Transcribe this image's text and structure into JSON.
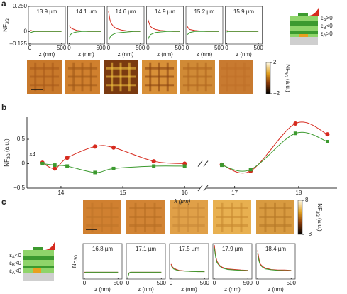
{
  "chart_data": [
    {
      "type": "small-multiples",
      "label": "a",
      "ylabel": {
        "text": "NF",
        "sub": "3Ω"
      },
      "ylim": [
        -0.125,
        0.25
      ],
      "yticks": [
        {
          "value": 0.25,
          "label": "0.250"
        },
        0,
        {
          "value": -0.125,
          "label": "–0.125"
        }
      ],
      "xlabel": "z (nm)",
      "xlim": [
        0,
        560
      ],
      "xticks": [
        0,
        500
      ],
      "x": [
        0,
        20,
        40,
        80,
        120,
        200,
        300,
        400,
        500
      ],
      "plots": [
        {
          "title": "13.9 µm",
          "series": [
            {
              "color": "#d62a1e",
              "values": [
                0.01,
                0.01,
                0.005,
                0,
                0,
                0,
                0,
                0,
                0
              ]
            },
            {
              "color": "#3c9a2f",
              "values": [
                -0.01,
                -0.01,
                -0.005,
                0,
                0,
                0,
                0,
                0,
                0
              ]
            }
          ]
        },
        {
          "title": "14.1 µm",
          "series": [
            {
              "color": "#d62a1e",
              "values": [
                0.06,
                0.04,
                0.03,
                0.02,
                0.01,
                0.005,
                0,
                0,
                0
              ]
            },
            {
              "color": "#3c9a2f",
              "values": [
                -0.05,
                -0.03,
                -0.02,
                -0.01,
                -0.005,
                0,
                0,
                0,
                0
              ]
            }
          ]
        },
        {
          "title": "14.6 µm",
          "series": [
            {
              "color": "#d62a1e",
              "values": [
                0.2,
                0.12,
                0.08,
                0.05,
                0.03,
                0.015,
                0.005,
                0,
                0
              ]
            },
            {
              "color": "#3c9a2f",
              "values": [
                -0.09,
                -0.06,
                -0.04,
                -0.025,
                -0.015,
                -0.01,
                -0.005,
                0,
                0
              ]
            }
          ]
        },
        {
          "title": "14.9 µm",
          "series": [
            {
              "color": "#d62a1e",
              "values": [
                0.12,
                0.08,
                0.05,
                0.03,
                0.02,
                0.01,
                0.005,
                0,
                0
              ]
            },
            {
              "color": "#3c9a2f",
              "values": [
                -0.08,
                -0.05,
                -0.03,
                -0.02,
                -0.01,
                -0.005,
                0,
                0,
                0
              ]
            }
          ]
        },
        {
          "title": "15.2 µm",
          "series": [
            {
              "color": "#d62a1e",
              "values": [
                0.05,
                0.03,
                0.02,
                0.015,
                0.01,
                0.005,
                0,
                0,
                0
              ]
            },
            {
              "color": "#3c9a2f",
              "values": [
                -0.03,
                -0.02,
                -0.01,
                -0.005,
                0,
                0,
                0,
                0,
                0
              ]
            }
          ]
        },
        {
          "title": "15.9 µm",
          "series": [
            {
              "color": "#d62a1e",
              "values": [
                0.01,
                0.005,
                0,
                0,
                0,
                0,
                0,
                0,
                0
              ]
            },
            {
              "color": "#3c9a2f",
              "values": [
                -0.005,
                0,
                0,
                0,
                0,
                0,
                0,
                0,
                0
              ]
            }
          ]
        }
      ],
      "colorbar": {
        "lim": [
          -2,
          2
        ],
        "ticks": [
          2,
          {
            "value": -2,
            "label": "−2"
          }
        ],
        "label": {
          "text": "NF",
          "sub": "3Ω",
          "rest": " (a.u.)"
        }
      },
      "inset_labels": [
        {
          "text": "ε",
          "sub": "A",
          "rest": ">0"
        },
        {
          "text": "ε",
          "sub": "B",
          "rest": "<0"
        },
        {
          "text": "ε",
          "sub": "A",
          "rest": ">0"
        }
      ]
    },
    {
      "type": "line",
      "label": "b",
      "ylabel": {
        "text": "NF",
        "sub": "3Ω",
        "rest": " (a.u.)"
      },
      "xlabel": "λ (µm)",
      "annotation": "×4",
      "ylim": [
        -0.5,
        0.95
      ],
      "yticks": [
        {
          "value": -0.5,
          "label": "−0.5"
        },
        0,
        0.5
      ],
      "x_segments": [
        {
          "xlim": [
            13.45,
            16.25
          ],
          "xticks": [
            14,
            15,
            16
          ]
        },
        {
          "xlim": [
            16.55,
            18.6
          ],
          "xticks": [
            17,
            18
          ]
        }
      ],
      "x": [
        13.7,
        13.9,
        14.1,
        14.55,
        14.85,
        15.5,
        16.0,
        16.8,
        17.25,
        17.95,
        18.45
      ],
      "series": [
        {
          "color": "#d62a1e",
          "values": [
            0.02,
            -0.1,
            0.12,
            0.35,
            0.33,
            0.05,
            0.0,
            -0.02,
            -0.15,
            0.82,
            0.6
          ]
        },
        {
          "color": "#3c9a2f",
          "values": [
            0.0,
            -0.03,
            -0.05,
            -0.18,
            -0.1,
            -0.05,
            -0.05,
            -0.03,
            -0.12,
            0.62,
            0.45
          ]
        }
      ]
    },
    {
      "type": "small-multiples",
      "label": "c",
      "ylabel": {
        "text": "NF",
        "sub": "3Ω"
      },
      "ylim": [
        -0.25,
        1.05
      ],
      "xlabel": "z (nm)",
      "xlim": [
        0,
        560
      ],
      "xticks": [
        0,
        500
      ],
      "x": [
        0,
        20,
        40,
        80,
        120,
        200,
        300,
        400,
        500
      ],
      "plots": [
        {
          "title": "16.8 µm",
          "series": [
            {
              "color": "#d62a1e",
              "values": [
                0,
                0,
                0,
                0,
                0,
                0,
                0,
                0,
                0
              ]
            },
            {
              "color": "#3c9a2f",
              "values": [
                -0.02,
                0,
                0,
                0,
                0,
                0,
                0,
                0,
                0
              ]
            }
          ]
        },
        {
          "title": "17.1 µm",
          "series": [
            {
              "color": "#d62a1e",
              "values": [
                -0.15,
                -0.02,
                0,
                0,
                0,
                0,
                0,
                0,
                0
              ]
            },
            {
              "color": "#3c9a2f",
              "values": [
                -0.2,
                -0.03,
                0,
                0,
                0,
                0,
                0,
                0,
                0
              ]
            }
          ]
        },
        {
          "title": "17.5 µm",
          "series": [
            {
              "color": "#d62a1e",
              "values": [
                0.3,
                0.2,
                0.15,
                0.1,
                0.07,
                0.05,
                0.03,
                0.03,
                0.02
              ]
            },
            {
              "color": "#3c9a2f",
              "values": [
                0.25,
                0.17,
                0.12,
                0.08,
                0.06,
                0.04,
                0.03,
                0.02,
                0.02
              ]
            }
          ]
        },
        {
          "title": "17.9 µm",
          "series": [
            {
              "color": "#d62a1e",
              "values": [
                1.0,
                0.6,
                0.4,
                0.25,
                0.18,
                0.12,
                0.1,
                0.08,
                0.07
              ]
            },
            {
              "color": "#3c9a2f",
              "values": [
                0.9,
                0.55,
                0.35,
                0.22,
                0.15,
                0.1,
                0.08,
                0.07,
                0.06
              ]
            }
          ]
        },
        {
          "title": "18.4 µm",
          "series": [
            {
              "color": "#d62a1e",
              "values": [
                0.8,
                0.5,
                0.3,
                0.2,
                0.15,
                0.1,
                0.08,
                0.08,
                0.07
              ]
            },
            {
              "color": "#3c9a2f",
              "values": [
                0.7,
                0.42,
                0.26,
                0.17,
                0.12,
                0.09,
                0.07,
                0.06,
                0.06
              ]
            }
          ]
        }
      ],
      "colorbar": {
        "lim": [
          -8,
          8
        ],
        "ticks": [
          8,
          {
            "value": -8,
            "label": "−8"
          }
        ],
        "label": {
          "text": "NF",
          "sub": "3Ω",
          "rest": " (a.u.)"
        }
      },
      "inset_labels": [
        {
          "text": "ε",
          "sub": "A",
          "rest": "<0"
        },
        {
          "text": "ε",
          "sub": "B",
          "rest": "<0"
        },
        {
          "text": "ε",
          "sub": "A",
          "rest": "<0"
        }
      ]
    }
  ]
}
